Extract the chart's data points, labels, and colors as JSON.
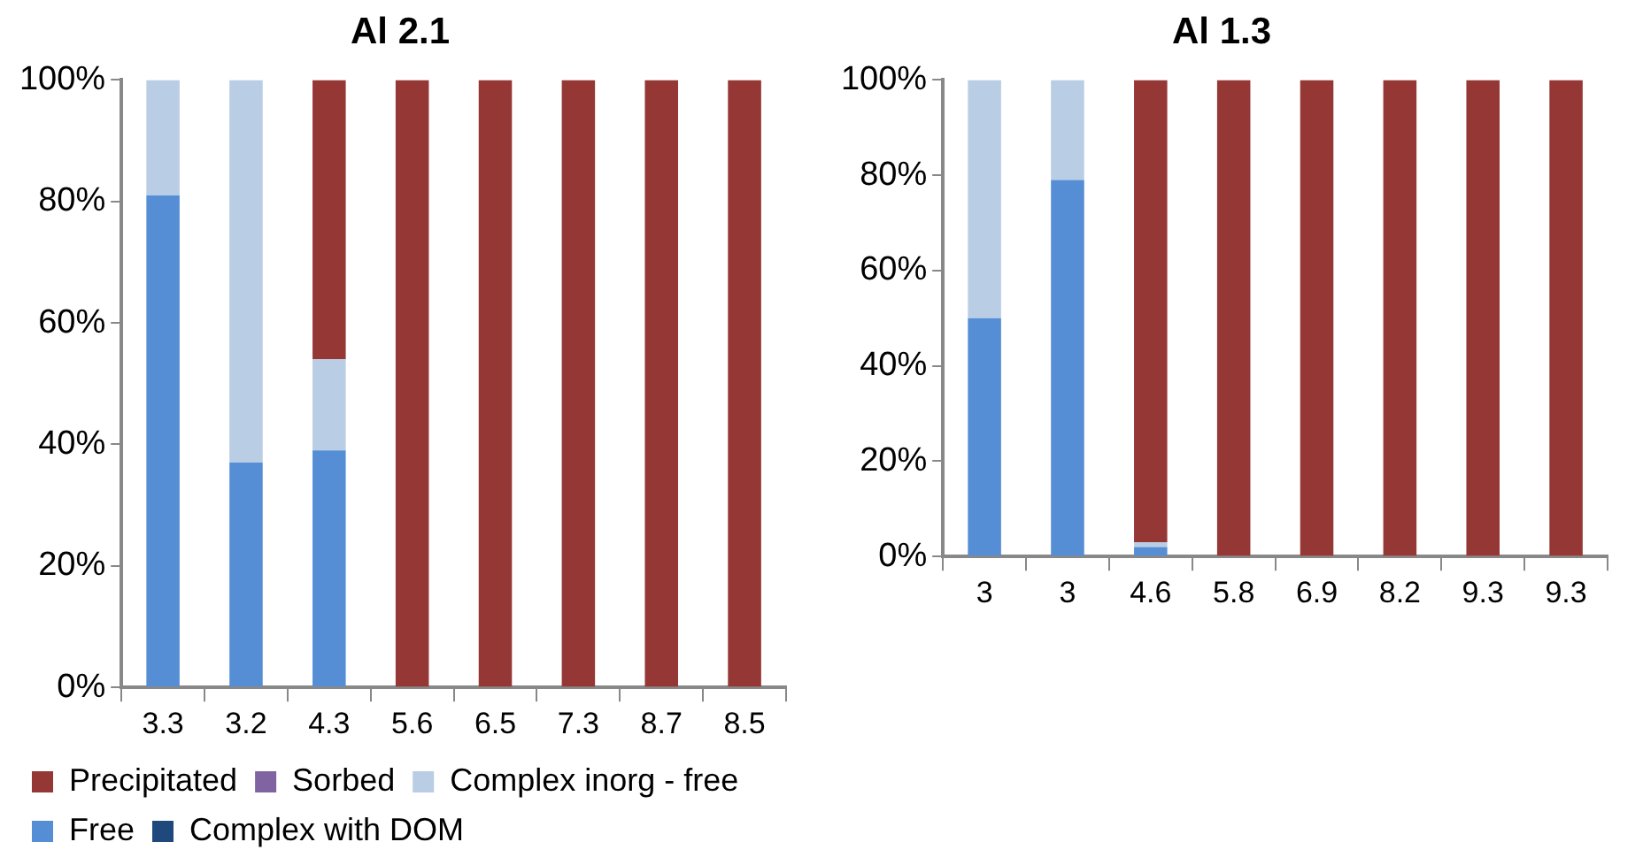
{
  "chart_data": [
    {
      "type": "bar",
      "title": "Al 2.1",
      "categories": [
        "3.3",
        "3.2",
        "4.3",
        "5.6",
        "6.5",
        "7.3",
        "8.7",
        "8.5"
      ],
      "stacked": true,
      "ylim": [
        0,
        100
      ],
      "yticks": [
        {
          "value": 0,
          "label": "0%"
        },
        {
          "value": 20,
          "label": "20%"
        },
        {
          "value": 40,
          "label": "40%"
        },
        {
          "value": 60,
          "label": "60%"
        },
        {
          "value": 80,
          "label": "80%"
        },
        {
          "value": 100,
          "label": "100%"
        }
      ],
      "grid": false,
      "legend": "bottom left",
      "series": [
        {
          "name": "Complex with DOM",
          "color": "#1f497d",
          "values": [
            0,
            0,
            0,
            0,
            0,
            0,
            0,
            0
          ]
        },
        {
          "name": "Free",
          "color": "#558ed5",
          "values": [
            81,
            37,
            39,
            0,
            0,
            0,
            0,
            0
          ]
        },
        {
          "name": "Complex inorg - free",
          "color": "#b9cde5",
          "values": [
            19,
            63,
            15,
            0,
            0,
            0,
            0,
            0
          ]
        },
        {
          "name": "Sorbed",
          "color": "#8064a2",
          "values": [
            0,
            0,
            0,
            0,
            0,
            0,
            0,
            0
          ]
        },
        {
          "name": "Precipitated",
          "color": "#953735",
          "values": [
            0,
            0,
            46,
            100,
            100,
            100,
            100,
            100
          ]
        }
      ]
    },
    {
      "type": "bar",
      "title": "Al 1.3",
      "categories": [
        "3",
        "3",
        "4.6",
        "5.8",
        "6.9",
        "8.2",
        "9.3",
        "9.3"
      ],
      "stacked": true,
      "ylim": [
        0,
        100
      ],
      "yticks": [
        {
          "value": 0,
          "label": "0%"
        },
        {
          "value": 20,
          "label": "20%"
        },
        {
          "value": 40,
          "label": "40%"
        },
        {
          "value": 60,
          "label": "60%"
        },
        {
          "value": 80,
          "label": "80%"
        },
        {
          "value": 100,
          "label": "100%"
        }
      ],
      "grid": false,
      "legend": false,
      "series": [
        {
          "color": "#1f497d",
          "values": [
            0,
            0,
            0,
            0,
            0,
            0,
            0,
            0
          ]
        },
        {
          "color": "#558ed5",
          "values": [
            50,
            79,
            2,
            0,
            0,
            0,
            0,
            0
          ]
        },
        {
          "color": "#b9cde5",
          "values": [
            50,
            21,
            1,
            0,
            0,
            0,
            0,
            0
          ]
        },
        {
          "color": "#8064a2",
          "values": [
            0,
            0,
            0,
            0,
            0,
            0,
            0,
            0
          ]
        },
        {
          "color": "#953735",
          "values": [
            0,
            0,
            97,
            100,
            100,
            100,
            100,
            100
          ]
        }
      ]
    }
  ]
}
